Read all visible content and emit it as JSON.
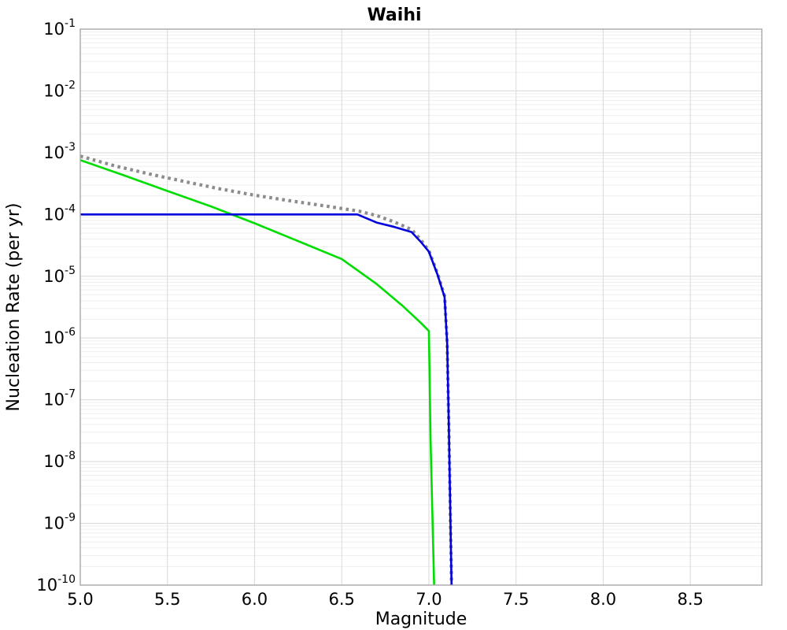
{
  "title": "Waihi",
  "colors": {
    "background": "#ffffff",
    "frame": "#a8a8a8",
    "grid_major": "#dcdcdc",
    "grid_minor": "#efefef",
    "text": "#000000",
    "series_gray": "#8c8c8c",
    "series_green": "#00dd00",
    "series_blue": "#0000dd"
  },
  "chart_data": {
    "type": "line",
    "title": "Waihi",
    "xlabel": "Magnitude",
    "ylabel": "Nucleation Rate (per yr)",
    "xlim": [
      5.0,
      8.91
    ],
    "ylim": [
      1e-10,
      0.1
    ],
    "yscale": "log",
    "grid": "major and log-minor horizontal, major vertical",
    "legend_position": "none",
    "x_ticks": [
      5.0,
      5.5,
      6.0,
      6.5,
      7.0,
      7.5,
      8.0,
      8.5
    ],
    "x_tick_labels": [
      "5.0",
      "5.5",
      "6.0",
      "6.5",
      "7.0",
      "7.5",
      "8.0",
      "8.5"
    ],
    "y_tick_exponents": [
      -1,
      -2,
      -3,
      -4,
      -5,
      -6,
      -7,
      -8,
      -9,
      -10
    ],
    "series": [
      {
        "name": "gray-dotted-curve",
        "color": "#8c8c8c",
        "style": "dotted",
        "width": 4.2,
        "points": [
          [
            5.0,
            0.00088
          ],
          [
            5.2,
            0.00061
          ],
          [
            5.4,
            0.00045
          ],
          [
            5.6,
            0.00034
          ],
          [
            5.8,
            0.00026
          ],
          [
            6.0,
            0.000205
          ],
          [
            6.2,
            0.000167
          ],
          [
            6.4,
            0.000138
          ],
          [
            6.6,
            0.000113
          ],
          [
            6.7,
            9.6e-05
          ],
          [
            6.8,
            7.6e-05
          ],
          [
            6.9,
            5.7e-05
          ],
          [
            6.95,
            4e-05
          ],
          [
            7.0,
            2.6e-05
          ],
          [
            7.05,
            1.1e-05
          ],
          [
            7.09,
            4.8e-06
          ],
          [
            7.105,
            8.5e-07
          ],
          [
            7.115,
            3e-08
          ],
          [
            7.13,
            1e-10
          ]
        ]
      },
      {
        "name": "green-solid-curve",
        "color": "#00dd00",
        "style": "solid",
        "width": 2.6,
        "points": [
          [
            5.0,
            0.00076
          ],
          [
            5.25,
            0.00043
          ],
          [
            5.5,
            0.00024
          ],
          [
            5.75,
            0.000135
          ],
          [
            6.0,
            7.2e-05
          ],
          [
            6.25,
            3.7e-05
          ],
          [
            6.5,
            1.9e-05
          ],
          [
            6.7,
            7.5e-06
          ],
          [
            6.85,
            3.3e-06
          ],
          [
            6.95,
            1.8e-06
          ],
          [
            7.0,
            1.3e-06
          ],
          [
            7.01,
            2e-08
          ],
          [
            7.03,
            1e-10
          ]
        ]
      },
      {
        "name": "blue-solid-curve",
        "color": "#0000dd",
        "style": "solid",
        "width": 2.6,
        "points": [
          [
            5.0,
            0.0001
          ],
          [
            6.59,
            0.0001
          ],
          [
            6.7,
            7.4e-05
          ],
          [
            6.8,
            6.3e-05
          ],
          [
            6.9,
            5.2e-05
          ],
          [
            6.95,
            3.7e-05
          ],
          [
            7.0,
            2.5e-05
          ],
          [
            7.05,
            1.05e-05
          ],
          [
            7.09,
            4.6e-06
          ],
          [
            7.105,
            8e-07
          ],
          [
            7.115,
            3e-08
          ],
          [
            7.13,
            1e-10
          ]
        ]
      }
    ]
  }
}
